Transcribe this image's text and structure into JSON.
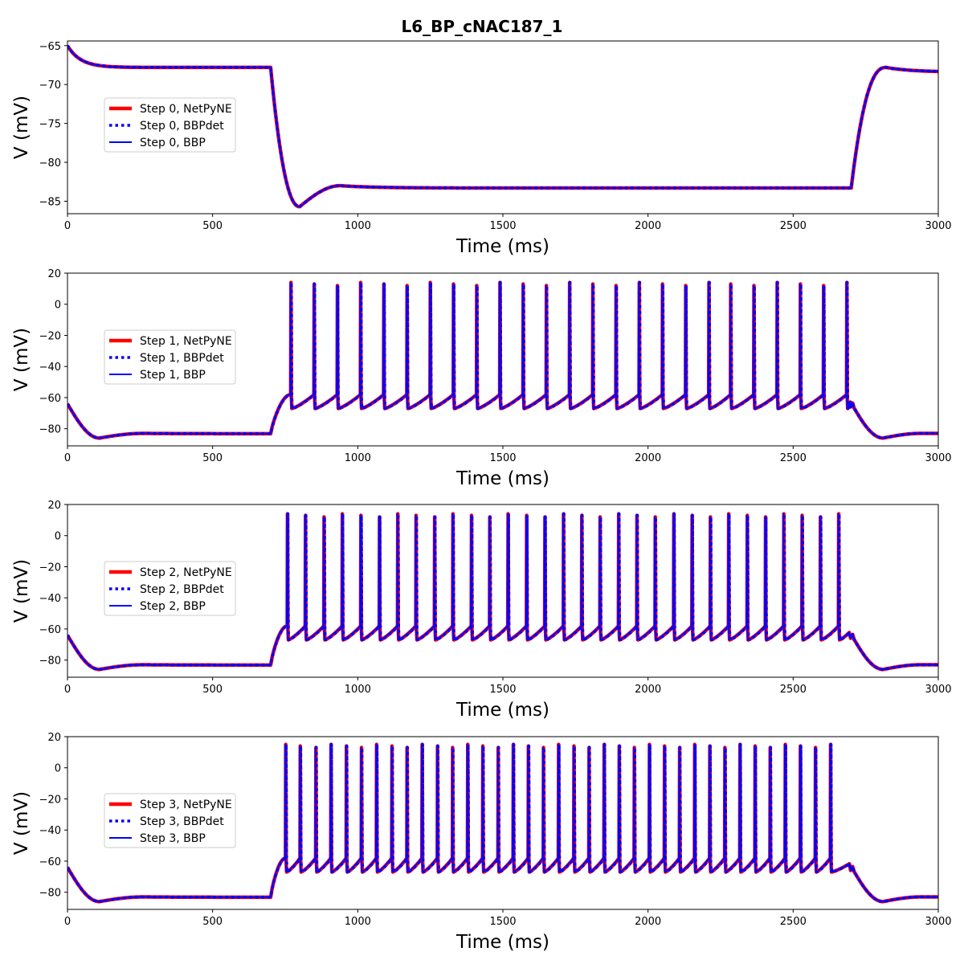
{
  "figure": {
    "title": "L6_BP_cNAC187_1",
    "colors": {
      "netpyne": "#ff0000",
      "bbpdet": "#0000ff",
      "bbp": "#0000ff"
    }
  },
  "chart_data": [
    {
      "type": "line",
      "xlabel": "Time (ms)",
      "ylabel": "V (mV)",
      "xlim": [
        0,
        3000
      ],
      "ylim": [
        -86.6,
        -64.4
      ],
      "xticks": [
        0,
        500,
        1000,
        1500,
        2000,
        2500,
        3000
      ],
      "yticks": [
        -85,
        -80,
        -75,
        -70,
        -65
      ],
      "legend_position": "center-left",
      "series": [
        {
          "name": "Step 0, NetPyNE",
          "style": "solid-thick",
          "color": "#ff0000"
        },
        {
          "name": "Step 0, BBPdet",
          "style": "dotted",
          "color": "#0000ff"
        },
        {
          "name": "Step 0, BBP",
          "style": "solid",
          "color": "#0000ff"
        }
      ],
      "trace": {
        "initial_v": -65.0,
        "rest_v": -67.8,
        "step_start": 700,
        "step_end": 2700,
        "trough_v": -85.7,
        "trough_t": 800,
        "plateau_v": -83.3,
        "recovery_peak_v": -67.8,
        "recovery_peak_t": 2820,
        "final_v": -68.4,
        "spike_times": []
      }
    },
    {
      "type": "line",
      "xlabel": "Time (ms)",
      "ylabel": "V (mV)",
      "xlim": [
        0,
        3000
      ],
      "ylim": [
        -91,
        20
      ],
      "xticks": [
        0,
        500,
        1000,
        1500,
        2000,
        2500,
        3000
      ],
      "yticks": [
        -80,
        -60,
        -40,
        -20,
        0,
        20
      ],
      "legend_position": "center-left",
      "series": [
        {
          "name": "Step 1, NetPyNE",
          "style": "solid-thick",
          "color": "#ff0000"
        },
        {
          "name": "Step 1, BBPdet",
          "style": "dotted",
          "color": "#0000ff"
        },
        {
          "name": "Step 1, BBP",
          "style": "solid",
          "color": "#0000ff"
        }
      ],
      "trace": {
        "initial_v": -64.0,
        "trough_v": -86.0,
        "trough_t": 110,
        "pre_v": -83.2,
        "step_start": 700,
        "step_end": 2700,
        "spike_threshold_v": -58.0,
        "ahp_v": -67.0,
        "post_trough_v": -86.0,
        "post_trough_t": 2810,
        "final_v": -83.0,
        "spike_peak_v": 14,
        "spike_times": [
          770,
          850,
          930,
          1010,
          1090,
          1170,
          1250,
          1330,
          1410,
          1490,
          1570,
          1650,
          1730,
          1810,
          1890,
          1970,
          2050,
          2130,
          2210,
          2285,
          2365,
          2445,
          2525,
          2605,
          2685
        ]
      }
    },
    {
      "type": "line",
      "xlabel": "Time (ms)",
      "ylabel": "V (mV)",
      "xlim": [
        0,
        3000
      ],
      "ylim": [
        -91,
        20
      ],
      "xticks": [
        0,
        500,
        1000,
        1500,
        2000,
        2500,
        3000
      ],
      "yticks": [
        -80,
        -60,
        -40,
        -20,
        0,
        20
      ],
      "legend_position": "center-left",
      "series": [
        {
          "name": "Step 2, NetPyNE",
          "style": "solid-thick",
          "color": "#ff0000"
        },
        {
          "name": "Step 2, BBPdet",
          "style": "dotted",
          "color": "#0000ff"
        },
        {
          "name": "Step 2, BBP",
          "style": "solid",
          "color": "#0000ff"
        }
      ],
      "trace": {
        "initial_v": -64.0,
        "trough_v": -86.0,
        "trough_t": 110,
        "pre_v": -83.2,
        "step_start": 700,
        "step_end": 2700,
        "spike_threshold_v": -58.0,
        "ahp_v": -67.0,
        "post_trough_v": -86.0,
        "post_trough_t": 2810,
        "final_v": -83.0,
        "spike_peak_v": 14,
        "spike_times": [
          758,
          820,
          884,
          947,
          1011,
          1075,
          1138,
          1201,
          1265,
          1328,
          1392,
          1455,
          1518,
          1582,
          1645,
          1709,
          1772,
          1835,
          1899,
          1962,
          2025,
          2089,
          2152,
          2215,
          2278,
          2342,
          2405,
          2468,
          2531,
          2594,
          2657
        ]
      }
    },
    {
      "type": "line",
      "xlabel": "Time (ms)",
      "ylabel": "V (mV)",
      "xlim": [
        0,
        3000
      ],
      "ylim": [
        -91,
        20
      ],
      "xticks": [
        0,
        500,
        1000,
        1500,
        2000,
        2500,
        3000
      ],
      "yticks": [
        -80,
        -60,
        -40,
        -20,
        0,
        20
      ],
      "legend_position": "center-left",
      "series": [
        {
          "name": "Step 3, NetPyNE",
          "style": "solid-thick",
          "color": "#ff0000"
        },
        {
          "name": "Step 3, BBPdet",
          "style": "dotted",
          "color": "#0000ff"
        },
        {
          "name": "Step 3, BBP",
          "style": "solid",
          "color": "#0000ff"
        }
      ],
      "trace": {
        "initial_v": -64.0,
        "trough_v": -86.0,
        "trough_t": 110,
        "pre_v": -83.2,
        "step_start": 700,
        "step_end": 2700,
        "spike_threshold_v": -58.0,
        "ahp_v": -67.0,
        "post_trough_v": -86.0,
        "post_trough_t": 2810,
        "final_v": -83.0,
        "spike_peak_v": 15,
        "spike_times": [
          752,
          802,
          856,
          908,
          961,
          1013,
          1065,
          1118,
          1170,
          1222,
          1275,
          1327,
          1379,
          1431,
          1484,
          1536,
          1588,
          1640,
          1692,
          1745,
          1797,
          1849,
          1901,
          1953,
          2005,
          2057,
          2109,
          2161,
          2213,
          2265,
          2317,
          2369,
          2421,
          2473,
          2525,
          2577,
          2629
        ]
      }
    }
  ]
}
